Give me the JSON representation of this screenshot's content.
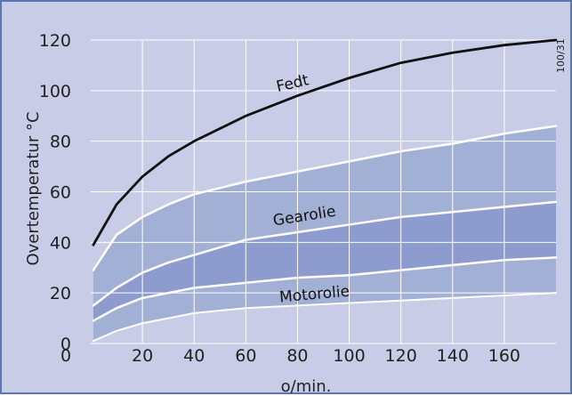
{
  "chart_data": {
    "type": "area",
    "xlabel": "o/min.",
    "ylabel": "Overtemperatur °C",
    "xlim": [
      0,
      180
    ],
    "ylim": [
      0,
      120
    ],
    "x_ticks": [
      20,
      40,
      60,
      80,
      100,
      120,
      140,
      160
    ],
    "y_ticks": [
      0,
      20,
      40,
      60,
      80,
      100,
      120
    ],
    "grid": true,
    "reference_code": "100/31",
    "colors": {
      "background": "#c8cce6",
      "band_light": "#a3b0d6",
      "band_dark": "#8d9bcf",
      "boundary": "#ffffff",
      "fedt_line": "#111111",
      "border": "#5b74b4"
    },
    "series": [
      {
        "name": "Fedt",
        "role": "curve",
        "x": [
          1,
          10,
          20,
          30,
          40,
          60,
          80,
          100,
          120,
          140,
          160,
          180
        ],
        "values": [
          39,
          55,
          66,
          74,
          80,
          90,
          98,
          105,
          111,
          115,
          118,
          120
        ]
      },
      {
        "name": "Gearolie",
        "role": "band",
        "x": [
          1,
          10,
          20,
          30,
          40,
          60,
          80,
          100,
          120,
          140,
          160,
          180
        ],
        "upper": [
          29,
          43,
          50,
          55,
          59,
          64,
          68,
          72,
          76,
          79,
          83,
          86
        ],
        "mid": [
          15,
          22,
          28,
          32,
          35,
          41,
          44,
          47,
          50,
          52,
          54,
          56
        ]
      },
      {
        "name": "Motorolie",
        "role": "band",
        "x": [
          1,
          10,
          20,
          30,
          40,
          60,
          80,
          100,
          120,
          140,
          160,
          180
        ],
        "upper": [
          9,
          14,
          18,
          20,
          22,
          24,
          26,
          27,
          29,
          31,
          33,
          34
        ],
        "lower": [
          1,
          5,
          8,
          10,
          12,
          14,
          15,
          16,
          17,
          18,
          19,
          20
        ]
      }
    ]
  }
}
